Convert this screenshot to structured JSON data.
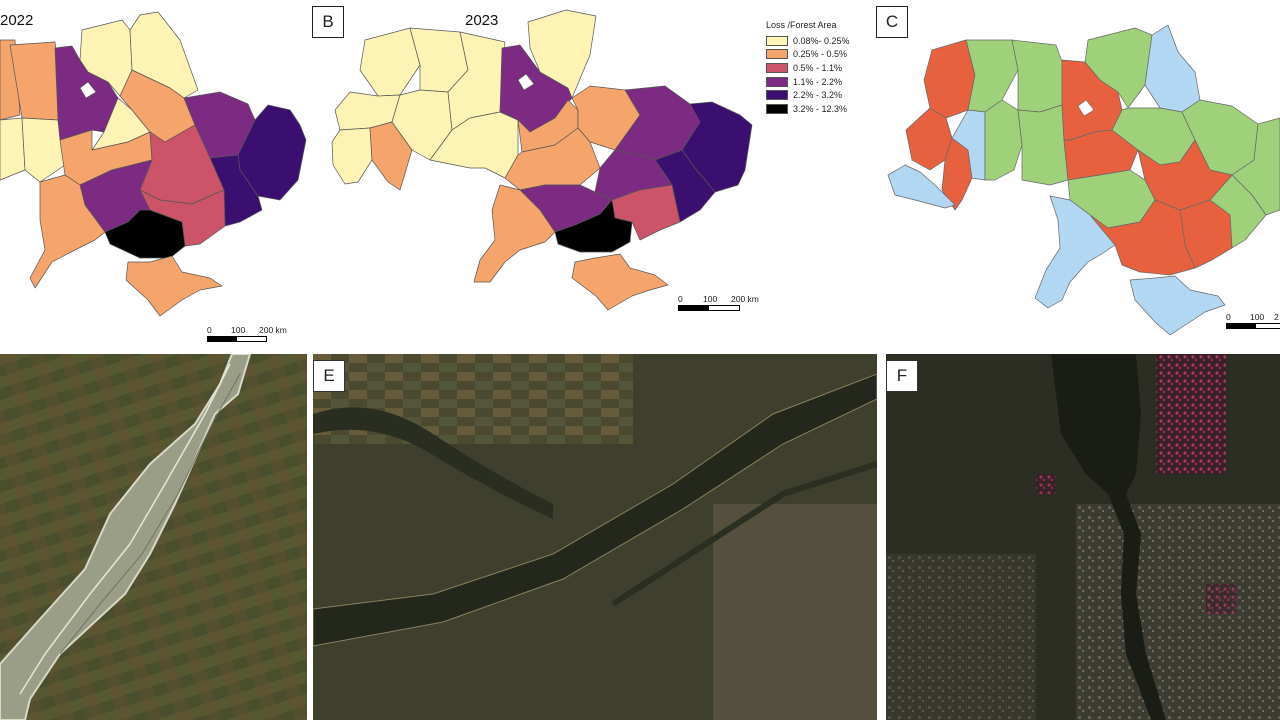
{
  "panels": {
    "a": {
      "year": "2022"
    },
    "b": {
      "label": "B",
      "year": "2023"
    },
    "c": {
      "label": "C"
    },
    "e": {
      "label": "E"
    },
    "f": {
      "label": "F"
    }
  },
  "legend": {
    "title": "Loss     /Forest Area",
    "classes": [
      {
        "label": "0.08%- 0.25%",
        "color": "#fdf3b5"
      },
      {
        "label": "0.25% - 0.5%",
        "color": "#f5a46c"
      },
      {
        "label": "0.5% - 1.1%",
        "color": "#cd5468"
      },
      {
        "label": "1.1% - 2.2%",
        "color": "#7d2b82"
      },
      {
        "label": "2.2% - 3.2%",
        "color": "#3b0f70"
      },
      {
        "label": "3.2% - 12.3%",
        "color": "#000000"
      }
    ]
  },
  "panel_c_colors": {
    "red": "#e8613f",
    "green": "#9fd07a",
    "blue": "#b2d7f2"
  },
  "scalebar": {
    "t0": "0",
    "t1": "100",
    "t2": "200 km"
  },
  "scalebar_c": {
    "t0": "0",
    "t1": "100",
    "t2": "2"
  }
}
